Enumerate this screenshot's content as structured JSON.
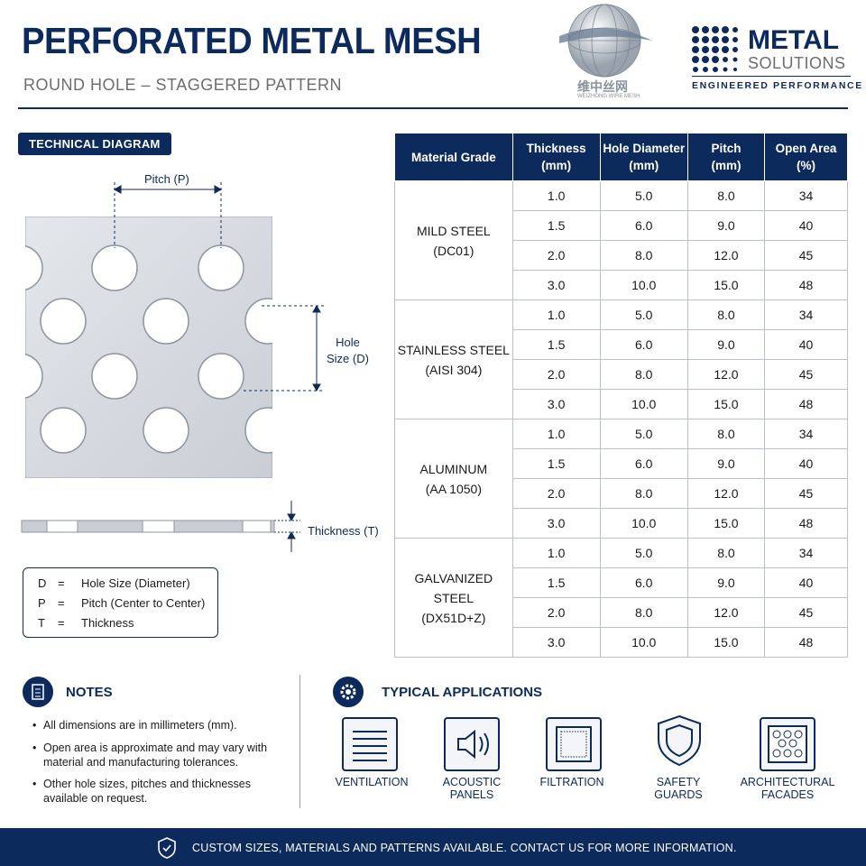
{
  "header": {
    "title": "PERFORATED METAL MESH",
    "subtitle": "ROUND HOLE – STAGGERED PATTERN",
    "logo_cn": "维中丝网",
    "logo_en": "WEIZHONG WIRE MESH",
    "brand": "METAL",
    "brand_sub": "SOLUTIONS",
    "tagline": "ENGINEERED PERFORMANCE"
  },
  "diagram": {
    "label": "TECHNICAL DIAGRAM",
    "pitch": "Pitch (P)",
    "hole": [
      "Hole",
      "Size (D)"
    ],
    "thickness": "Thickness (T)",
    "legend": [
      {
        "symbol": "D",
        "sep": "=",
        "text": "Hole Size (Diameter)"
      },
      {
        "symbol": "P",
        "sep": "=",
        "text": "Pitch (Center to Center)"
      },
      {
        "symbol": "T",
        "sep": "=",
        "text": "Thickness"
      }
    ]
  },
  "table": {
    "headers": [
      [
        "Material Grade"
      ],
      [
        "Thickness",
        "(mm)"
      ],
      [
        "Hole Diameter",
        "(mm)"
      ],
      [
        "Pitch",
        "(mm)"
      ],
      [
        "Open Area",
        "(%)"
      ]
    ],
    "groups": [
      {
        "name": "MILD STEEL",
        "grade": "(DC01)",
        "rows": [
          [
            "1.0",
            "5.0",
            "8.0",
            "34"
          ],
          [
            "1.5",
            "6.0",
            "9.0",
            "40"
          ],
          [
            "2.0",
            "8.0",
            "12.0",
            "45"
          ],
          [
            "3.0",
            "10.0",
            "15.0",
            "48"
          ]
        ]
      },
      {
        "name": "STAINLESS STEEL",
        "grade": "(AISI 304)",
        "rows": [
          [
            "1.0",
            "5.0",
            "8.0",
            "34"
          ],
          [
            "1.5",
            "6.0",
            "9.0",
            "40"
          ],
          [
            "2.0",
            "8.0",
            "12.0",
            "45"
          ],
          [
            "3.0",
            "10.0",
            "15.0",
            "48"
          ]
        ]
      },
      {
        "name": "ALUMINUM",
        "grade": "(AA 1050)",
        "rows": [
          [
            "1.0",
            "5.0",
            "8.0",
            "34"
          ],
          [
            "1.5",
            "6.0",
            "9.0",
            "40"
          ],
          [
            "2.0",
            "8.0",
            "12.0",
            "45"
          ],
          [
            "3.0",
            "10.0",
            "15.0",
            "48"
          ]
        ]
      },
      {
        "name": "GALVANIZED STEEL",
        "grade": "(DX51D+Z)",
        "rows": [
          [
            "1.0",
            "5.0",
            "8.0",
            "34"
          ],
          [
            "1.5",
            "6.0",
            "9.0",
            "40"
          ],
          [
            "2.0",
            "8.0",
            "12.0",
            "45"
          ],
          [
            "3.0",
            "10.0",
            "15.0",
            "48"
          ]
        ]
      }
    ]
  },
  "notes": {
    "title": "NOTES",
    "items": [
      "All dimensions are in millimeters (mm).",
      "Open area is approximate and may vary with material and manufacturing tolerances.",
      "Other hole sizes, pitches and thicknesses available on request."
    ]
  },
  "applications": {
    "title": "TYPICAL APPLICATIONS",
    "items": [
      [
        "VENTILATION"
      ],
      [
        "ACOUSTIC",
        "PANELS"
      ],
      [
        "FILTRATION"
      ],
      [
        "SAFETY",
        "GUARDS"
      ],
      [
        "ARCHITECTURAL",
        "FACADES"
      ]
    ]
  },
  "footer": {
    "text": "CUSTOM SIZES, MATERIALS AND PATTERNS AVAILABLE. CONTACT US FOR MORE INFORMATION."
  }
}
